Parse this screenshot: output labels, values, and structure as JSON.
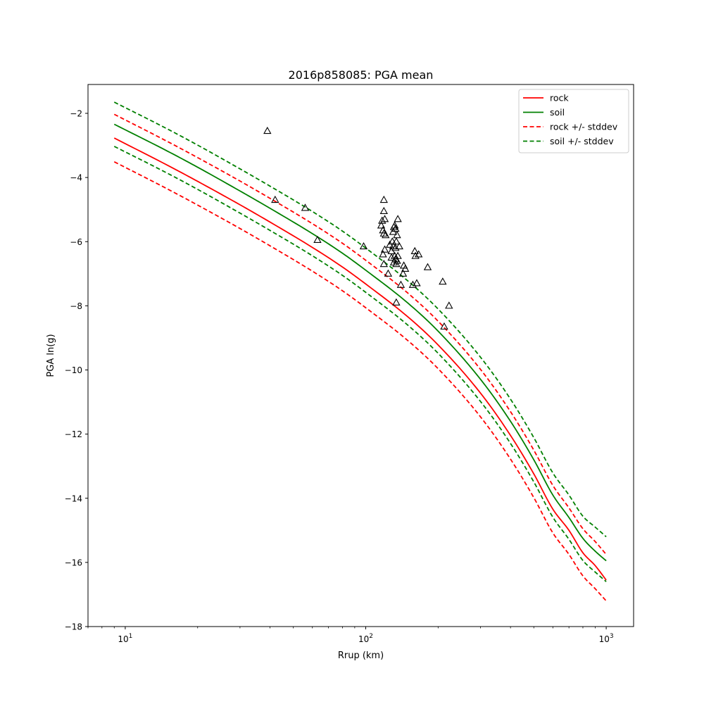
{
  "chart_data": {
    "type": "line",
    "title": "2016p858085: PGA mean",
    "xlabel": "Rrup (km)",
    "ylabel": "PGA ln(g)",
    "xscale": "log",
    "xlim": [
      7,
      1300
    ],
    "ylim": [
      -18,
      -1.1
    ],
    "grid": false,
    "legend_position": "top-right",
    "x_ticks": [
      {
        "value": 10,
        "label": "10",
        "exp": "1"
      },
      {
        "value": 100,
        "label": "10",
        "exp": "2"
      },
      {
        "value": 1000,
        "label": "10",
        "exp": "3"
      }
    ],
    "y_ticks": [
      -18,
      -16,
      -14,
      -12,
      -10,
      -8,
      -6,
      -4,
      -2
    ],
    "y_tick_labels": [
      "−18",
      "−16",
      "−14",
      "−12",
      "−10",
      "−8",
      "−6",
      "−4",
      "−2"
    ],
    "x": [
      9,
      15,
      20,
      30,
      40,
      60,
      80,
      100,
      150,
      200,
      300,
      400,
      500,
      600,
      700,
      800,
      900,
      1000
    ],
    "series": [
      {
        "name": "rock",
        "color": "#ff0000",
        "dash": false,
        "values": [
          -2.77,
          -3.62,
          -4.12,
          -4.85,
          -5.39,
          -6.18,
          -6.79,
          -7.32,
          -8.35,
          -9.22,
          -10.72,
          -12.04,
          -13.24,
          -14.34,
          -15.0,
          -15.7,
          -16.1,
          -16.55
        ]
      },
      {
        "name": "soil",
        "color": "#008000",
        "dash": false,
        "values": [
          -2.34,
          -3.18,
          -3.68,
          -4.42,
          -4.96,
          -5.75,
          -6.36,
          -6.89,
          -7.92,
          -8.79,
          -10.29,
          -11.6,
          -12.8,
          -13.9,
          -14.6,
          -15.25,
          -15.65,
          -15.95
        ]
      },
      {
        "name": "rock +/- stddev",
        "color": "#ff0000",
        "dash": true,
        "legend": true,
        "values": [
          -2.03,
          -2.88,
          -3.38,
          -4.11,
          -4.65,
          -5.44,
          -6.05,
          -6.58,
          -7.61,
          -8.48,
          -9.98,
          -11.3,
          -12.5,
          -13.6,
          -14.3,
          -14.95,
          -15.35,
          -15.75
        ]
      },
      {
        "name": "rock +/- stddev",
        "color": "#ff0000",
        "dash": true,
        "legend": false,
        "values": [
          -3.51,
          -4.36,
          -4.86,
          -5.59,
          -6.13,
          -6.92,
          -7.53,
          -8.06,
          -9.09,
          -9.96,
          -11.46,
          -12.78,
          -13.98,
          -15.08,
          -15.75,
          -16.42,
          -16.82,
          -17.2
        ]
      },
      {
        "name": "soil +/- stddev",
        "color": "#008000",
        "dash": true,
        "legend": true,
        "values": [
          -1.65,
          -2.49,
          -2.99,
          -3.73,
          -4.27,
          -5.06,
          -5.67,
          -6.2,
          -7.23,
          -8.1,
          -9.6,
          -10.91,
          -12.11,
          -13.21,
          -13.9,
          -14.56,
          -14.9,
          -15.2
        ]
      },
      {
        "name": "soil +/- stddev",
        "color": "#008000",
        "dash": true,
        "legend": false,
        "values": [
          -3.03,
          -3.87,
          -4.37,
          -5.11,
          -5.65,
          -6.44,
          -7.05,
          -7.58,
          -8.61,
          -9.48,
          -10.98,
          -12.29,
          -13.49,
          -14.59,
          -15.28,
          -15.94,
          -16.3,
          -16.6
        ]
      }
    ],
    "observations": {
      "marker": "triangle",
      "color": "#000000",
      "points": [
        [
          39,
          -2.55
        ],
        [
          42,
          -4.7
        ],
        [
          56,
          -4.95
        ],
        [
          63,
          -5.95
        ],
        [
          98,
          -6.15
        ],
        [
          116,
          -5.5
        ],
        [
          117,
          -5.35
        ],
        [
          118,
          -5.65
        ],
        [
          118,
          -6.4
        ],
        [
          119,
          -4.7
        ],
        [
          119,
          -5.05
        ],
        [
          119,
          -5.75
        ],
        [
          119,
          -6.7
        ],
        [
          120,
          -5.3
        ],
        [
          120,
          -6.25
        ],
        [
          121,
          -5.8
        ],
        [
          124,
          -7.0
        ],
        [
          126,
          -6.1
        ],
        [
          128,
          -6.3
        ],
        [
          128,
          -6.5
        ],
        [
          129,
          -6.0
        ],
        [
          130,
          -5.7
        ],
        [
          130,
          -6.15
        ],
        [
          131,
          -6.65
        ],
        [
          131,
          -5.55
        ],
        [
          132,
          -5.5
        ],
        [
          132,
          -6.45
        ],
        [
          133,
          -5.6
        ],
        [
          133,
          -6.2
        ],
        [
          133,
          -6.55
        ],
        [
          134,
          -7.9
        ],
        [
          134,
          -6.0
        ],
        [
          134,
          -6.7
        ],
        [
          135,
          -5.8
        ],
        [
          135,
          -6.6
        ],
        [
          136,
          -6.45
        ],
        [
          136,
          -5.3
        ],
        [
          138,
          -6.15
        ],
        [
          140,
          -7.35
        ],
        [
          143,
          -7.0
        ],
        [
          144,
          -6.75
        ],
        [
          146,
          -6.85
        ],
        [
          157,
          -7.35
        ],
        [
          160,
          -6.3
        ],
        [
          161,
          -6.45
        ],
        [
          163,
          -7.3
        ],
        [
          166,
          -6.4
        ],
        [
          181,
          -6.8
        ],
        [
          209,
          -7.25
        ],
        [
          212,
          -8.65
        ],
        [
          222,
          -8.0
        ]
      ]
    }
  }
}
